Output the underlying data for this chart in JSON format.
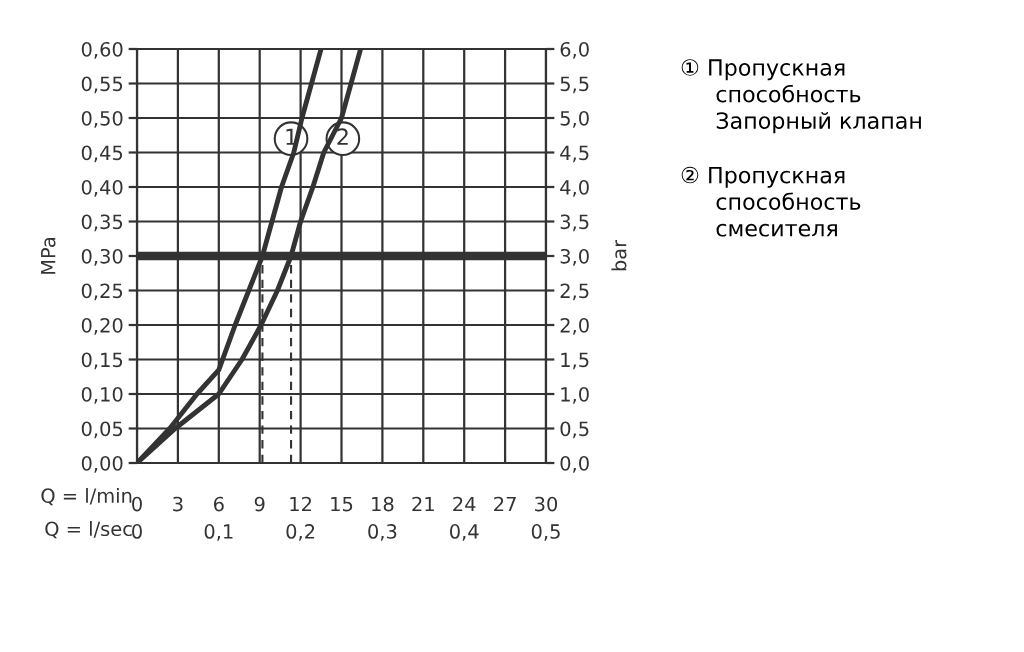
{
  "chart_data": {
    "type": "line",
    "xlabel": "Q = l/min",
    "x2label": "Q = l/sec",
    "ylabel": "MPa",
    "y2label": "bar",
    "xlim": [
      0,
      30
    ],
    "xticks": [
      0,
      3,
      6,
      9,
      12,
      15,
      18,
      21,
      24,
      27,
      30
    ],
    "x2lim": [
      0,
      0.5
    ],
    "x2ticks": [
      0,
      {
        "value": 0.1,
        "label": "0,1"
      },
      {
        "value": 0.2,
        "label": "0,2"
      },
      {
        "value": 0.3,
        "label": "0,3"
      },
      {
        "value": 0.4,
        "label": "0,4"
      },
      {
        "value": 0.5,
        "label": "0,5"
      }
    ],
    "ylim": [
      0,
      0.6
    ],
    "yticks": [
      {
        "value": 0,
        "label": "0,00"
      },
      {
        "value": 0.05,
        "label": "0,05"
      },
      {
        "value": 0.1,
        "label": "0,10"
      },
      {
        "value": 0.15,
        "label": "0,15"
      },
      {
        "value": 0.2,
        "label": "0,20"
      },
      {
        "value": 0.25,
        "label": "0,25"
      },
      {
        "value": 0.3,
        "label": "0,30"
      },
      {
        "value": 0.35,
        "label": "0,35"
      },
      {
        "value": 0.4,
        "label": "0,40"
      },
      {
        "value": 0.45,
        "label": "0,45"
      },
      {
        "value": 0.5,
        "label": "0,50"
      },
      {
        "value": 0.55,
        "label": "0,55"
      },
      {
        "value": 0.6,
        "label": "0,60"
      }
    ],
    "y2lim": [
      0,
      6
    ],
    "y2ticks": [
      {
        "value": 0,
        "label": "0,0"
      },
      {
        "value": 0.5,
        "label": "0,5"
      },
      {
        "value": 1,
        "label": "1,0"
      },
      {
        "value": 1.5,
        "label": "1,5"
      },
      {
        "value": 2,
        "label": "2,0"
      },
      {
        "value": 2.5,
        "label": "2,5"
      },
      {
        "value": 3,
        "label": "3,0"
      },
      {
        "value": 3.5,
        "label": "3,5"
      },
      {
        "value": 4,
        "label": "4,0"
      },
      {
        "value": 4.5,
        "label": "4,5"
      },
      {
        "value": 5,
        "label": "5,0"
      },
      {
        "value": 5.5,
        "label": "5,5"
      },
      {
        "value": 6,
        "label": "6,0"
      }
    ],
    "grid": true,
    "marker": "none",
    "series": [
      {
        "color": "#333333",
        "x": [
          0,
          2.4,
          4.4,
          6.0,
          7.2,
          8.2,
          9.2,
          9.9,
          10.6,
          11.5,
          12.1,
          13.5
        ],
        "values": [
          0,
          0.05,
          0.1,
          0.135,
          0.2,
          0.25,
          0.3,
          0.35,
          0.4,
          0.45,
          0.5,
          0.6
        ]
      },
      {
        "color": "#333333",
        "x": [
          0,
          2.8,
          6.0,
          7.7,
          9.1,
          10.3,
          11.3,
          12.0,
          12.9,
          13.7,
          15.0,
          16.4
        ],
        "values": [
          0,
          0.05,
          0.1,
          0.15,
          0.2,
          0.25,
          0.3,
          0.35,
          0.4,
          0.45,
          0.5,
          0.6
        ]
      },
      {
        "color": "#333333",
        "line_style": "dashed",
        "x": [
          9.2,
          9.2
        ],
        "values": [
          0,
          0.3
        ]
      },
      {
        "color": "#333333",
        "line_style": "dashed",
        "x": [
          11.3,
          11.3
        ],
        "values": [
          0,
          0.3
        ]
      }
    ],
    "ref_lines": [
      {
        "axis": "y",
        "value": 0.3,
        "color": "#333333"
      }
    ],
    "annotations": [
      {
        "text": "1",
        "x": 11.3,
        "y": 0.47
      },
      {
        "text": "2",
        "x": 15.1,
        "y": 0.47
      },
      "① Пропускная\n     способность\n     Запорный клапан",
      "② Пропускная\n     способность\n     смесителя"
    ]
  }
}
